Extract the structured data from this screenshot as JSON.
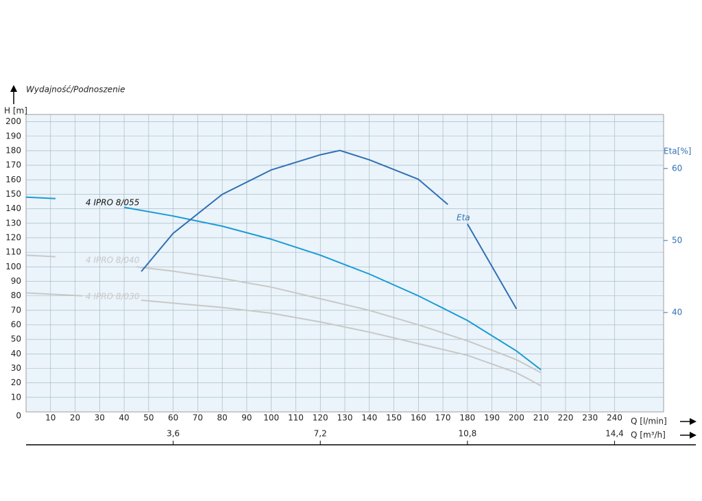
{
  "chart_data": {
    "type": "line",
    "title": "Wydajność/Podnoszenie",
    "y_label": "H [m]",
    "y2_label": "Eta[%]",
    "x_label": "Q [l/min]",
    "x2_label": "Q [m³/h]",
    "xlim": [
      0,
      260
    ],
    "xticks": [
      10,
      20,
      30,
      40,
      50,
      60,
      70,
      80,
      90,
      100,
      110,
      120,
      130,
      140,
      150,
      160,
      170,
      180,
      190,
      200,
      210,
      220,
      230,
      240
    ],
    "x2ticks": [
      {
        "value": 3.6,
        "label": "3,6"
      },
      {
        "value": 7.2,
        "label": "7,2"
      },
      {
        "value": 10.8,
        "label": "10,8"
      },
      {
        "value": 14.4,
        "label": "14,4"
      }
    ],
    "ylim": [
      0,
      205
    ],
    "yticks": [
      0,
      10,
      20,
      30,
      40,
      50,
      60,
      70,
      80,
      90,
      100,
      110,
      120,
      130,
      140,
      150,
      160,
      170,
      180,
      190,
      200
    ],
    "y2lim": [
      26.2,
      67.5
    ],
    "y2ticks": [
      40,
      50,
      60
    ],
    "grid": true,
    "series": [
      {
        "name": "4 IPRO 8/055",
        "color": "#1a9ad6",
        "x": [
          0,
          12,
          null,
          40,
          60,
          80,
          100,
          120,
          140,
          160,
          180,
          200,
          210
        ],
        "values": [
          148,
          147,
          null,
          141,
          135,
          128,
          119,
          108,
          95,
          80,
          63,
          42,
          29
        ]
      },
      {
        "name": "4 IPRO 8/040",
        "color": "#c8c8c8",
        "x": [
          0,
          12,
          null,
          45,
          60,
          80,
          100,
          120,
          140,
          160,
          180,
          200,
          210
        ],
        "values": [
          108,
          107,
          null,
          100,
          97,
          92,
          86,
          78,
          70,
          60,
          49,
          36,
          27
        ]
      },
      {
        "name": "4 IPRO 8/030",
        "color": "#c8c8c8",
        "x": [
          0,
          23,
          null,
          47,
          60,
          80,
          100,
          120,
          140,
          160,
          180,
          200,
          210
        ],
        "values": [
          82,
          80,
          null,
          77,
          75,
          72,
          68,
          62,
          55,
          47,
          39,
          27,
          18
        ]
      },
      {
        "name": "Eta",
        "color": "#2f6fb5",
        "axis": "y2",
        "x": [
          47,
          60,
          80,
          100,
          120,
          128,
          140,
          160,
          172,
          null,
          180,
          190,
          200
        ],
        "values": [
          45.7,
          51.0,
          56.4,
          59.8,
          61.9,
          62.5,
          61.2,
          58.5,
          55,
          null,
          52.3,
          46.4,
          40.5
        ]
      }
    ]
  }
}
